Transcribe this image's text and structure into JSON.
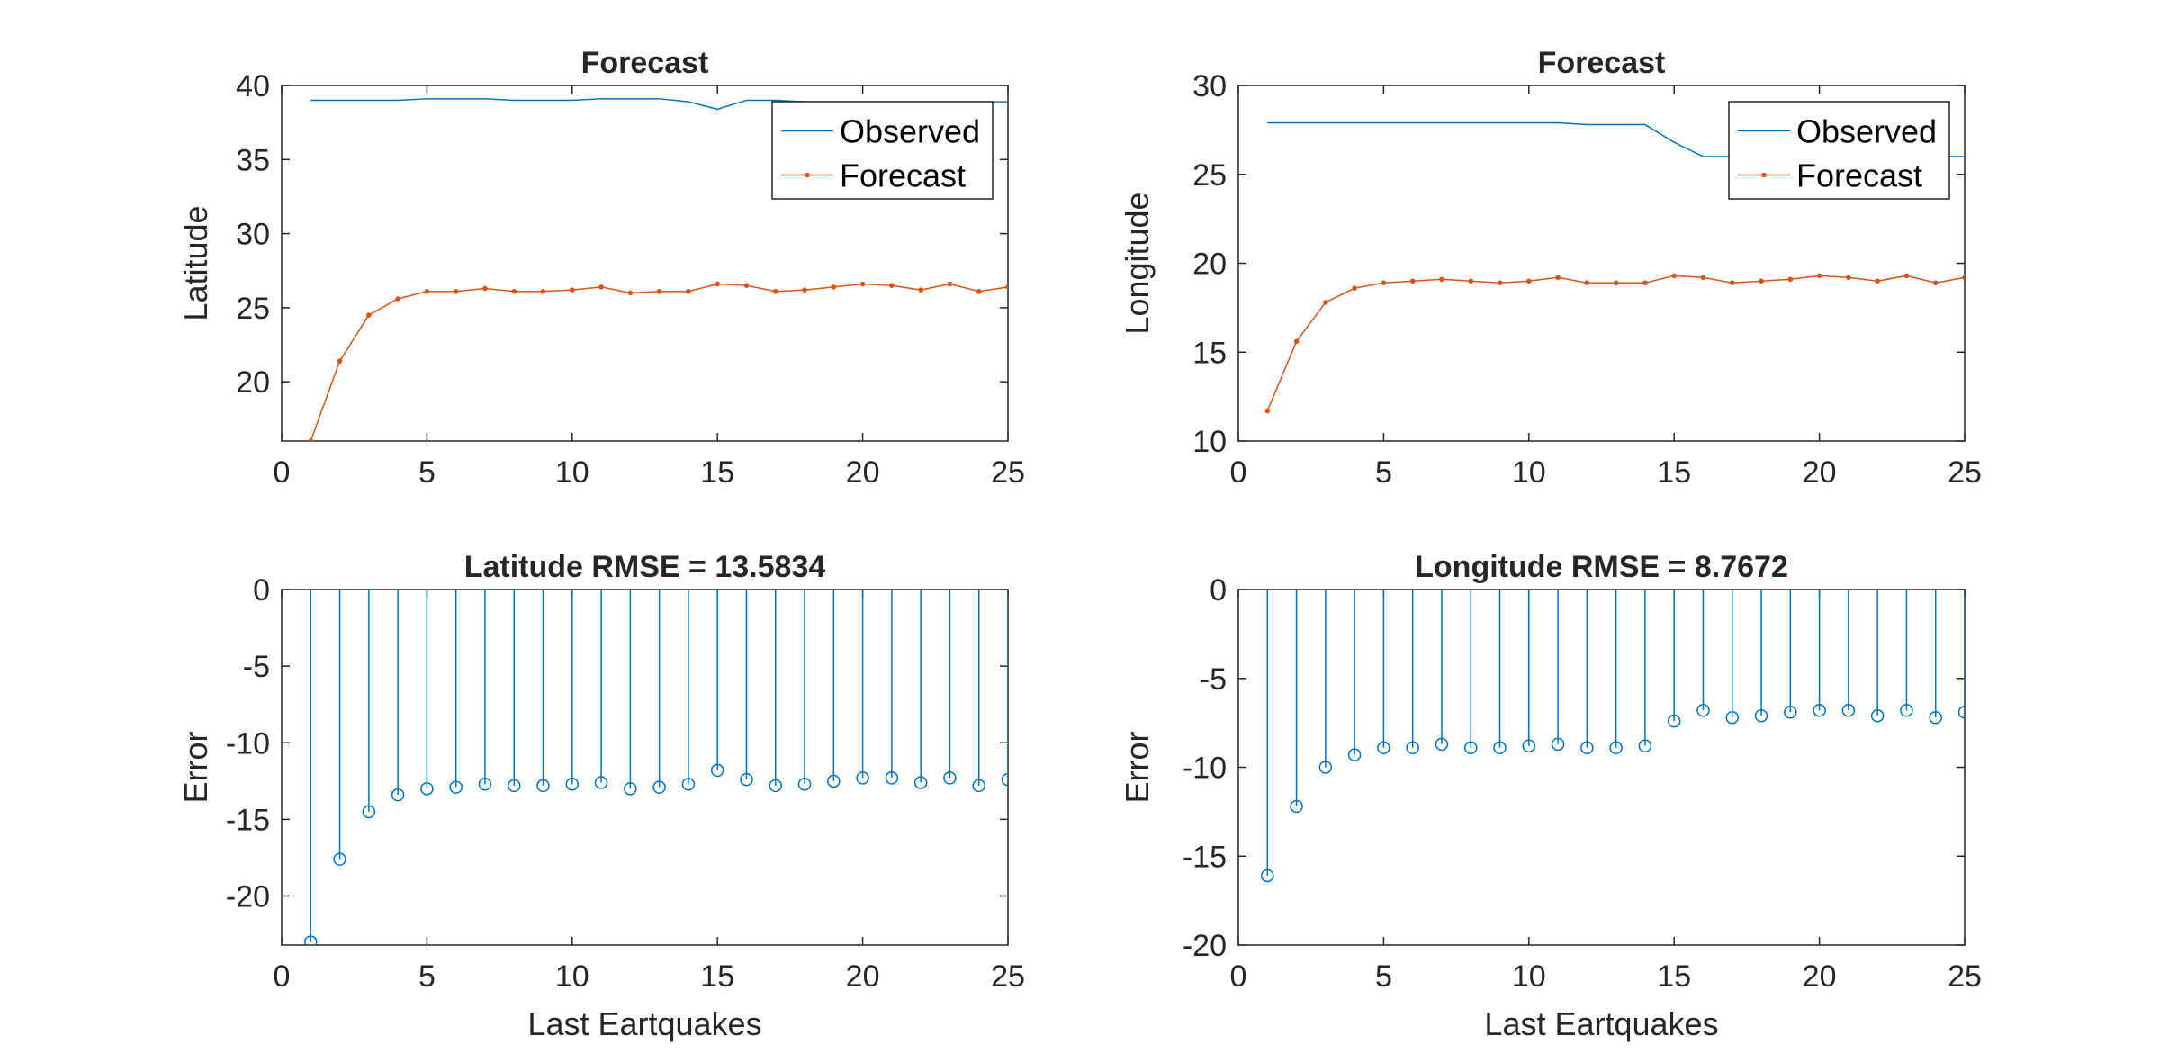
{
  "colors": {
    "observed": "#0072BD",
    "forecast": "#D95319",
    "axes": "#262626"
  },
  "chart_data": [
    {
      "id": "latitude-forecast",
      "type": "line",
      "title": "Forecast",
      "xlabel": "",
      "ylabel": "Latitude",
      "xlim": [
        0,
        25
      ],
      "ylim": [
        16,
        40
      ],
      "xticks": [
        0,
        5,
        10,
        15,
        20,
        25
      ],
      "yticks": [
        20,
        25,
        30,
        35,
        40
      ],
      "grid": false,
      "legend": "top-right",
      "x": [
        1,
        2,
        3,
        4,
        5,
        6,
        7,
        8,
        9,
        10,
        11,
        12,
        13,
        14,
        15,
        16,
        17,
        18,
        19,
        20,
        21,
        22,
        23,
        24,
        25
      ],
      "series": [
        {
          "name": "Observed",
          "style": "line",
          "color": "#0072BD",
          "values": [
            39.0,
            39.0,
            39.0,
            39.0,
            39.1,
            39.1,
            39.1,
            39.0,
            39.0,
            39.0,
            39.1,
            39.1,
            39.1,
            38.9,
            38.4,
            39.0,
            39.0,
            38.9,
            38.9,
            38.9,
            38.9,
            38.9,
            38.9,
            38.9,
            38.9
          ]
        },
        {
          "name": "Forecast",
          "style": "line-dot",
          "color": "#D95319",
          "values": [
            16.0,
            21.4,
            24.5,
            25.6,
            26.1,
            26.1,
            26.3,
            26.1,
            26.1,
            26.2,
            26.4,
            26.0,
            26.1,
            26.1,
            26.6,
            26.5,
            26.1,
            26.2,
            26.4,
            26.6,
            26.5,
            26.2,
            26.6,
            26.1,
            26.4
          ]
        }
      ]
    },
    {
      "id": "longitude-forecast",
      "type": "line",
      "title": "Forecast",
      "xlabel": "",
      "ylabel": "Longitude",
      "xlim": [
        0,
        25
      ],
      "ylim": [
        10,
        30
      ],
      "xticks": [
        0,
        5,
        10,
        15,
        20,
        25
      ],
      "yticks": [
        10,
        15,
        20,
        25,
        30
      ],
      "grid": false,
      "legend": "top-right",
      "x": [
        1,
        2,
        3,
        4,
        5,
        6,
        7,
        8,
        9,
        10,
        11,
        12,
        13,
        14,
        15,
        16,
        17,
        18,
        19,
        20,
        21,
        22,
        23,
        24,
        25
      ],
      "series": [
        {
          "name": "Observed",
          "style": "line",
          "color": "#0072BD",
          "values": [
            27.9,
            27.9,
            27.9,
            27.9,
            27.9,
            27.9,
            27.9,
            27.9,
            27.9,
            27.9,
            27.9,
            27.8,
            27.8,
            27.8,
            26.8,
            26.0,
            26.0,
            26.0,
            26.0,
            26.0,
            26.0,
            26.0,
            26.0,
            26.0,
            26.0
          ]
        },
        {
          "name": "Forecast",
          "style": "line-dot",
          "color": "#D95319",
          "values": [
            11.7,
            15.6,
            17.8,
            18.6,
            18.9,
            19.0,
            19.1,
            19.0,
            18.9,
            19.0,
            19.2,
            18.9,
            18.9,
            18.9,
            19.3,
            19.2,
            18.9,
            19.0,
            19.1,
            19.3,
            19.2,
            19.0,
            19.3,
            18.9,
            19.2
          ]
        }
      ]
    },
    {
      "id": "latitude-error",
      "type": "stem",
      "title": "Latitude RMSE = 13.5834",
      "xlabel": "Last Eartquakes",
      "ylabel": "Error",
      "xlim": [
        0,
        25
      ],
      "ylim": [
        -23.2,
        0
      ],
      "xticks": [
        0,
        5,
        10,
        15,
        20,
        25
      ],
      "yticks": [
        -20,
        -15,
        -10,
        -5,
        0
      ],
      "grid": false,
      "x": [
        1,
        2,
        3,
        4,
        5,
        6,
        7,
        8,
        9,
        10,
        11,
        12,
        13,
        14,
        15,
        16,
        17,
        18,
        19,
        20,
        21,
        22,
        23,
        24,
        25
      ],
      "series": [
        {
          "style": "stem",
          "color": "#0072BD",
          "values": [
            -23.0,
            -17.6,
            -14.5,
            -13.4,
            -13.0,
            -12.9,
            -12.7,
            -12.8,
            -12.8,
            -12.7,
            -12.6,
            -13.0,
            -12.9,
            -12.7,
            -11.8,
            -12.4,
            -12.8,
            -12.7,
            -12.5,
            -12.3,
            -12.3,
            -12.6,
            -12.3,
            -12.8,
            -12.4
          ]
        }
      ]
    },
    {
      "id": "longitude-error",
      "type": "stem",
      "title": "Longitude RMSE = 8.7672",
      "xlabel": "Last Eartquakes",
      "ylabel": "Error",
      "xlim": [
        0,
        25
      ],
      "ylim": [
        -20,
        0
      ],
      "xticks": [
        0,
        5,
        10,
        15,
        20,
        25
      ],
      "yticks": [
        -20,
        -15,
        -10,
        -5,
        0
      ],
      "grid": false,
      "x": [
        1,
        2,
        3,
        4,
        5,
        6,
        7,
        8,
        9,
        10,
        11,
        12,
        13,
        14,
        15,
        16,
        17,
        18,
        19,
        20,
        21,
        22,
        23,
        24,
        25
      ],
      "series": [
        {
          "style": "stem",
          "color": "#0072BD",
          "values": [
            -16.1,
            -12.2,
            -10.0,
            -9.3,
            -8.9,
            -8.9,
            -8.7,
            -8.9,
            -8.9,
            -8.8,
            -8.7,
            -8.9,
            -8.9,
            -8.8,
            -7.4,
            -6.8,
            -7.2,
            -7.1,
            -6.9,
            -6.8,
            -6.8,
            -7.1,
            -6.8,
            -7.2,
            -6.9
          ]
        }
      ]
    }
  ]
}
